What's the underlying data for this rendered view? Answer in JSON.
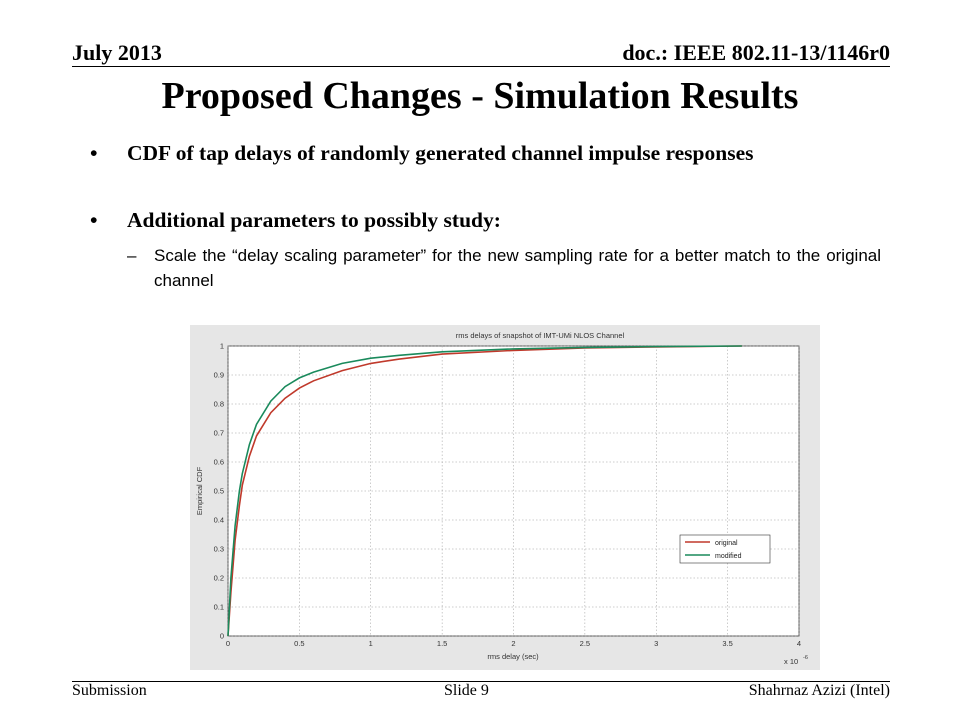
{
  "header": {
    "date": "July 2013",
    "doc": "doc.: IEEE 802.11-13/1146r0"
  },
  "slide": {
    "title": "Proposed Changes - Simulation Results",
    "bullet_symbol": "•",
    "bullets": [
      "CDF of tap delays of randomly generated channel impulse responses",
      "Additional parameters to possibly study:"
    ],
    "sub_symbol": "–",
    "sub_bullet": "Scale the “delay scaling parameter” for the new sampling rate for a better match to the original channel"
  },
  "footer": {
    "left": "Submission",
    "center": "Slide 9",
    "right": "Shahrnaz Azizi (Intel)"
  },
  "chart_data": {
    "type": "line",
    "title": "rms delays of snapshot of IMT-UMi NLOS Channel",
    "xlabel": "rms delay (sec)",
    "ylabel": "Empirical CDF",
    "x_multiplier": "x 10",
    "x_multiplier_exp": "-6",
    "xlim": [
      0,
      4
    ],
    "ylim": [
      0,
      1
    ],
    "xticks": [
      "0",
      "0.5",
      "1",
      "1.5",
      "2",
      "2.5",
      "3",
      "3.5",
      "4"
    ],
    "yticks": [
      "0",
      "0.1",
      "0.2",
      "0.3",
      "0.4",
      "0.5",
      "0.6",
      "0.7",
      "0.8",
      "0.9",
      "1"
    ],
    "grid": true,
    "legend_position": "lower-right",
    "series": [
      {
        "name": "original",
        "color": "#c0392b",
        "x": [
          0,
          0.02,
          0.05,
          0.08,
          0.1,
          0.15,
          0.2,
          0.3,
          0.4,
          0.5,
          0.6,
          0.8,
          1.0,
          1.2,
          1.5,
          2.0,
          2.5,
          3.0,
          3.6
        ],
        "y": [
          0,
          0.15,
          0.33,
          0.45,
          0.52,
          0.62,
          0.69,
          0.77,
          0.82,
          0.855,
          0.88,
          0.915,
          0.94,
          0.955,
          0.972,
          0.985,
          0.993,
          0.997,
          1.0
        ]
      },
      {
        "name": "modified",
        "color": "#1a8a5c",
        "x": [
          0,
          0.02,
          0.05,
          0.08,
          0.1,
          0.15,
          0.2,
          0.3,
          0.4,
          0.5,
          0.6,
          0.8,
          1.0,
          1.2,
          1.5,
          2.0,
          2.5,
          3.0,
          3.6
        ],
        "y": [
          0,
          0.2,
          0.38,
          0.5,
          0.56,
          0.66,
          0.73,
          0.81,
          0.86,
          0.89,
          0.91,
          0.94,
          0.958,
          0.968,
          0.98,
          0.99,
          0.995,
          0.998,
          1.0
        ]
      }
    ]
  }
}
